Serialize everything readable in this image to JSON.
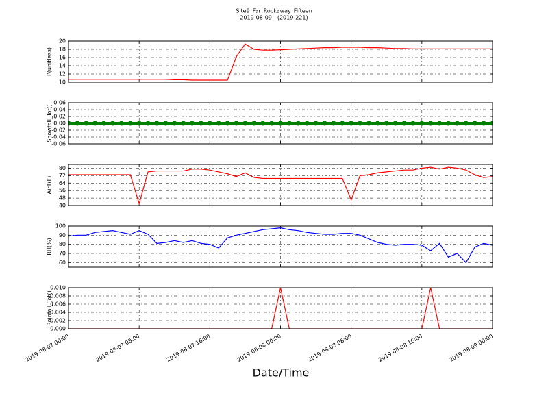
{
  "title": "Site9_Far_Rockaway_Fifteen",
  "subtitle": "2019-08-09 - (2019-221)",
  "xlabel": "Date/Time",
  "x": [
    "2019-08-07 00:00",
    "2019-08-07 01:00",
    "2019-08-07 02:00",
    "2019-08-07 03:00",
    "2019-08-07 04:00",
    "2019-08-07 05:00",
    "2019-08-07 06:00",
    "2019-08-07 07:00",
    "2019-08-07 08:00",
    "2019-08-07 09:00",
    "2019-08-07 10:00",
    "2019-08-07 11:00",
    "2019-08-07 12:00",
    "2019-08-07 13:00",
    "2019-08-07 14:00",
    "2019-08-07 15:00",
    "2019-08-07 16:00",
    "2019-08-07 17:00",
    "2019-08-07 18:00",
    "2019-08-07 19:00",
    "2019-08-07 20:00",
    "2019-08-07 21:00",
    "2019-08-07 22:00",
    "2019-08-07 23:00",
    "2019-08-08 00:00",
    "2019-08-08 01:00",
    "2019-08-08 02:00",
    "2019-08-08 03:00",
    "2019-08-08 04:00",
    "2019-08-08 05:00",
    "2019-08-08 06:00",
    "2019-08-08 07:00",
    "2019-08-08 08:00",
    "2019-08-08 09:00",
    "2019-08-08 10:00",
    "2019-08-08 11:00",
    "2019-08-08 12:00",
    "2019-08-08 13:00",
    "2019-08-08 14:00",
    "2019-08-08 15:00",
    "2019-08-08 16:00",
    "2019-08-08 17:00",
    "2019-08-08 18:00",
    "2019-08-08 19:00",
    "2019-08-08 20:00",
    "2019-08-08 21:00",
    "2019-08-08 22:00",
    "2019-08-08 23:00",
    "2019-08-09 00:00"
  ],
  "xlim": [
    "2019-08-07 00:00",
    "2019-08-09 00:00"
  ],
  "xticks": [
    "2019-08-07 00:00",
    "2019-08-07 08:00",
    "2019-08-07 16:00",
    "2019-08-08 00:00",
    "2019-08-08 08:00",
    "2019-08-08 16:00",
    "2019-08-09 00:00"
  ],
  "chart_data": [
    {
      "type": "line",
      "ylabel": "P(unitless)",
      "color": "#ff0000",
      "grid": true,
      "ylim": [
        10,
        20
      ],
      "yticks": [
        10,
        12,
        14,
        16,
        18,
        20
      ],
      "values": [
        10.7,
        10.7,
        10.7,
        10.7,
        10.7,
        10.7,
        10.7,
        10.7,
        10.7,
        10.7,
        10.7,
        10.7,
        10.6,
        10.6,
        10.5,
        10.5,
        10.5,
        10.5,
        10.5,
        16.2,
        19.3,
        18.0,
        17.8,
        17.8,
        17.9,
        18.0,
        18.1,
        18.2,
        18.3,
        18.4,
        18.4,
        18.5,
        18.5,
        18.5,
        18.4,
        18.4,
        18.3,
        18.2,
        18.2,
        18.1,
        18.1,
        18.1,
        18.1,
        18.1,
        18.1,
        18.1,
        18.1,
        18.1,
        18.1
      ]
    },
    {
      "type": "scatter",
      "ylabel": "Snowfall_Tot()",
      "color": "#008000",
      "grid": true,
      "ylim": [
        -0.06,
        0.06
      ],
      "yticks": [
        -0.06,
        -0.04,
        -0.02,
        {
          "value": 0,
          "label": "0.00"
        },
        0.02,
        0.04,
        0.06
      ],
      "values": [
        0,
        0,
        0,
        0,
        0,
        0,
        0,
        0,
        0,
        0,
        0,
        0,
        0,
        0,
        0,
        0,
        0,
        0,
        0,
        0,
        0,
        0,
        0,
        0,
        0,
        0,
        0,
        0,
        0,
        0,
        0,
        0,
        0,
        0,
        0,
        0,
        0,
        0,
        0,
        0,
        0,
        0,
        0,
        0,
        0,
        0,
        0,
        0,
        0
      ]
    },
    {
      "type": "line",
      "ylabel": "AirT(F)",
      "color": "#ff0000",
      "grid": true,
      "ylim": [
        40,
        84
      ],
      "yticks": [
        40,
        48,
        56,
        64,
        72,
        80
      ],
      "values": [
        73,
        73,
        73,
        73,
        73,
        73,
        73,
        73,
        42,
        76,
        77,
        77,
        77,
        77,
        79,
        79,
        78,
        76,
        74,
        71,
        75,
        70,
        69,
        69,
        69,
        69,
        69,
        69,
        69,
        69,
        69,
        69,
        46,
        72,
        73,
        75,
        76,
        77,
        78,
        78,
        80,
        81,
        79,
        81,
        80,
        78,
        73,
        70,
        71
      ]
    },
    {
      "type": "line",
      "ylabel": "RH(%)",
      "color": "#0000ff",
      "grid": true,
      "ylim": [
        55,
        100
      ],
      "yticks": [
        60,
        70,
        80,
        90,
        100
      ],
      "values": [
        89,
        90,
        90,
        93,
        94,
        95,
        93,
        91,
        95,
        91,
        81,
        82,
        84,
        82,
        84,
        81,
        80,
        76,
        87,
        90,
        92,
        94,
        96,
        97,
        98,
        96,
        95,
        93,
        92,
        91,
        91,
        92,
        92,
        90,
        86,
        82,
        80,
        79,
        80,
        80,
        79,
        73,
        81,
        66,
        70,
        60,
        77,
        81,
        79
      ]
    },
    {
      "type": "line",
      "ylabel": "Rainfall_Tot()",
      "color": "#ff0000",
      "grid": true,
      "ylim": [
        0,
        0.01
      ],
      "yticks": [
        {
          "value": 0,
          "label": "0.000"
        },
        0.002,
        0.004,
        0.006,
        0.008,
        {
          "value": 0.01,
          "label": "0.010"
        }
      ],
      "values": [
        0,
        0,
        0,
        0,
        0,
        0,
        0,
        0,
        0,
        0,
        0,
        0,
        0,
        0,
        0,
        0,
        0,
        0,
        0,
        0,
        0,
        0,
        0,
        0,
        0.01,
        0,
        0,
        0,
        0,
        0,
        0,
        0,
        0,
        0,
        0,
        0,
        0,
        0,
        0,
        0,
        0,
        0.01,
        0,
        0,
        0,
        0,
        0,
        0,
        0
      ]
    }
  ]
}
